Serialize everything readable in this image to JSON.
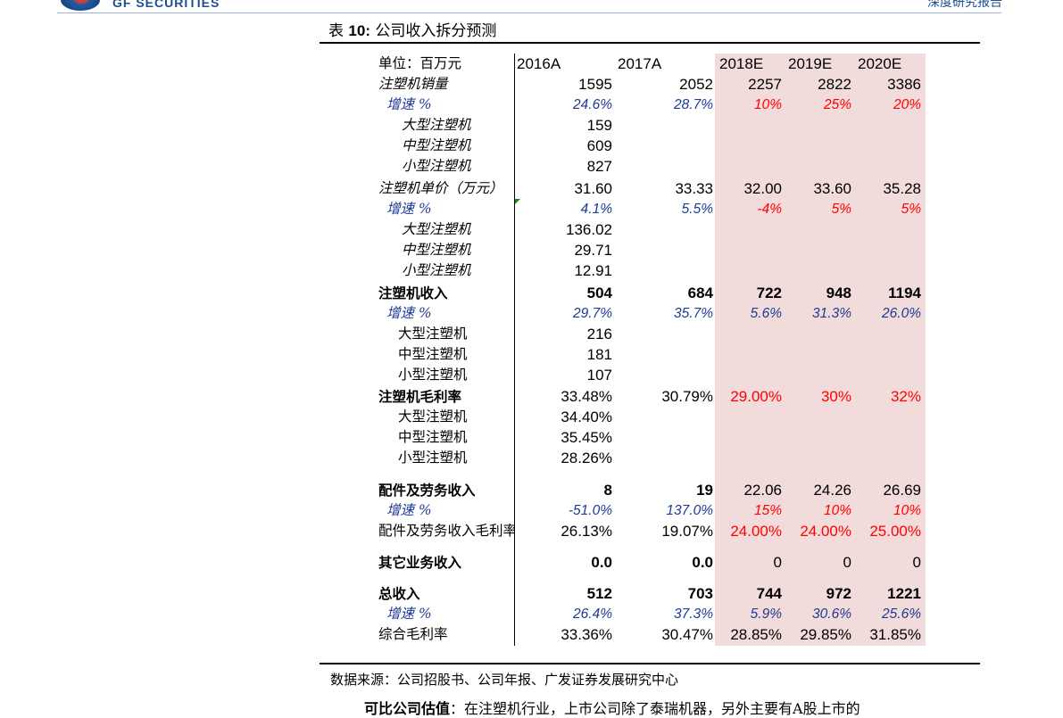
{
  "header": {
    "logo_text": "GF SECURITIES",
    "right_text": "深度研究报告"
  },
  "caption": {
    "prefix": "表 ",
    "number": "10:",
    "title": " 公司收入拆分预测"
  },
  "colors": {
    "forecast_bg": "#f2dcdb",
    "growth_blue": "#1f3a93",
    "forecast_red": "#ff0000",
    "brand_blue": "#1b4f92"
  },
  "chart_data": {
    "type": "table",
    "title": "表 10: 公司收入拆分预测",
    "unit_label": "单位：百万元",
    "columns": [
      "2016A",
      "2017A",
      "2018E",
      "2019E",
      "2020E"
    ],
    "rows": [
      {
        "label": "注塑机销量",
        "values": [
          "1595",
          "2052",
          "2257",
          "2822",
          "3386"
        ]
      },
      {
        "label": "增速 %",
        "values": [
          "24.6%",
          "28.7%",
          "10%",
          "25%",
          "20%"
        ]
      },
      {
        "label": "大型注塑机",
        "values": [
          "159",
          "",
          "",
          "",
          ""
        ]
      },
      {
        "label": "中型注塑机",
        "values": [
          "609",
          "",
          "",
          "",
          ""
        ]
      },
      {
        "label": "小型注塑机",
        "values": [
          "827",
          "",
          "",
          "",
          ""
        ]
      },
      {
        "label": "注塑机单价（万元）",
        "values": [
          "31.60",
          "33.33",
          "32.00",
          "33.60",
          "35.28"
        ]
      },
      {
        "label": "增速 %",
        "values": [
          "4.1%",
          "5.5%",
          "-4%",
          "5%",
          "5%"
        ]
      },
      {
        "label": "大型注塑机",
        "values": [
          "136.02",
          "",
          "",
          "",
          ""
        ]
      },
      {
        "label": "中型注塑机",
        "values": [
          "29.71",
          "",
          "",
          "",
          ""
        ]
      },
      {
        "label": "小型注塑机",
        "values": [
          "12.91",
          "",
          "",
          "",
          ""
        ]
      },
      {
        "label": "注塑机收入",
        "values": [
          "504",
          "684",
          "722",
          "948",
          "1194"
        ]
      },
      {
        "label": "增速 %",
        "values": [
          "29.7%",
          "35.7%",
          "5.6%",
          "31.3%",
          "26.0%"
        ]
      },
      {
        "label": "大型注塑机",
        "values": [
          "216",
          "",
          "",
          "",
          ""
        ]
      },
      {
        "label": "中型注塑机",
        "values": [
          "181",
          "",
          "",
          "",
          ""
        ]
      },
      {
        "label": "小型注塑机",
        "values": [
          "107",
          "",
          "",
          "",
          ""
        ]
      },
      {
        "label": "注塑机毛利率",
        "values": [
          "33.48%",
          "30.79%",
          "29.00%",
          "30%",
          "32%"
        ]
      },
      {
        "label": "大型注塑机",
        "values": [
          "34.40%",
          "",
          "",
          "",
          ""
        ]
      },
      {
        "label": "中型注塑机",
        "values": [
          "35.45%",
          "",
          "",
          "",
          ""
        ]
      },
      {
        "label": "小型注塑机",
        "values": [
          "28.26%",
          "",
          "",
          "",
          ""
        ]
      },
      {
        "label": "配件及劳务收入",
        "values": [
          "8",
          "19",
          "22.06",
          "24.26",
          "26.69"
        ]
      },
      {
        "label": "增速 %",
        "values": [
          "-51.0%",
          "137.0%",
          "15%",
          "10%",
          "10%"
        ]
      },
      {
        "label": "配件及劳务收入毛利率",
        "values": [
          "26.13%",
          "19.07%",
          "24.00%",
          "24.00%",
          "25.00%"
        ]
      },
      {
        "label": "其它业务收入",
        "values": [
          "0.0",
          "0.0",
          "0",
          "0",
          "0"
        ]
      },
      {
        "label": "总收入",
        "values": [
          "512",
          "703",
          "744",
          "972",
          "1221"
        ]
      },
      {
        "label": "增速 %",
        "values": [
          "26.4%",
          "37.3%",
          "5.9%",
          "30.6%",
          "25.6%"
        ]
      },
      {
        "label": "综合毛利率",
        "values": [
          "33.36%",
          "30.47%",
          "28.85%",
          "29.85%",
          "31.85%"
        ]
      }
    ]
  },
  "source": "数据来源：公司招股书、公司年报、广发证券发展研究中心",
  "footer": {
    "bold": "可比公司估值",
    "text": "：在注塑机行业，上市公司除了泰瑞机器，另外主要有A股上市的"
  }
}
